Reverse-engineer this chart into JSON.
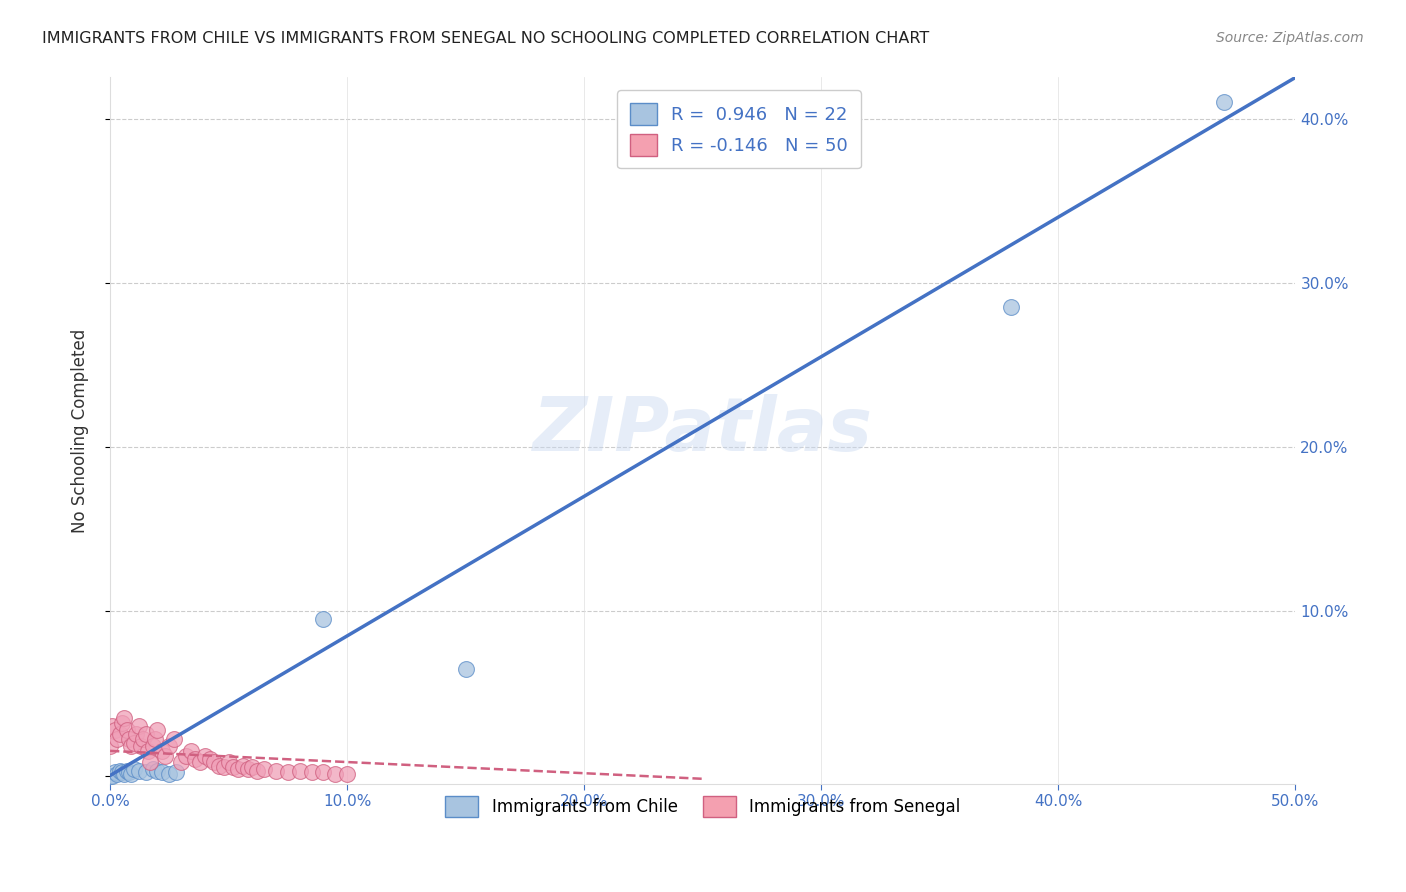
{
  "title": "IMMIGRANTS FROM CHILE VS IMMIGRANTS FROM SENEGAL NO SCHOOLING COMPLETED CORRELATION CHART",
  "source": "Source: ZipAtlas.com",
  "ylabel": "No Schooling Completed",
  "xlim": [
    0,
    0.5
  ],
  "ylim": [
    -0.005,
    0.425
  ],
  "xticks": [
    0.0,
    0.1,
    0.2,
    0.3,
    0.4,
    0.5
  ],
  "yticks": [
    0.0,
    0.1,
    0.2,
    0.3,
    0.4
  ],
  "xtick_labels": [
    "0.0%",
    "10.0%",
    "20.0%",
    "30.0%",
    "40.0%",
    "50.0%"
  ],
  "ytick_labels_right": [
    "",
    "10.0%",
    "20.0%",
    "30.0%",
    "40.0%"
  ],
  "background_color": "#ffffff",
  "grid_color": "#cccccc",
  "watermark": "ZIPatlas",
  "legend_color1": "#a8c4e0",
  "legend_color2": "#f4a0b0",
  "chile_color": "#a8c4e0",
  "chile_edge_color": "#5b8dc8",
  "chile_line_color": "#4472c4",
  "senegal_color": "#f0a0b8",
  "senegal_edge_color": "#d06080",
  "senegal_line_color": "#d06080",
  "chile_scatter_x": [
    0.0,
    0.001,
    0.002,
    0.003,
    0.004,
    0.005,
    0.006,
    0.007,
    0.008,
    0.009,
    0.01,
    0.012,
    0.015,
    0.018,
    0.02,
    0.022,
    0.025,
    0.028,
    0.09,
    0.15,
    0.38,
    0.47
  ],
  "chile_scatter_y": [
    0.0,
    0.0,
    0.002,
    0.001,
    0.003,
    0.002,
    0.001,
    0.003,
    0.002,
    0.001,
    0.004,
    0.003,
    0.002,
    0.004,
    0.003,
    0.002,
    0.001,
    0.002,
    0.095,
    0.065,
    0.285,
    0.41
  ],
  "senegal_scatter_x": [
    0.0,
    0.001,
    0.002,
    0.003,
    0.004,
    0.005,
    0.006,
    0.007,
    0.008,
    0.009,
    0.01,
    0.011,
    0.012,
    0.013,
    0.014,
    0.015,
    0.016,
    0.017,
    0.018,
    0.019,
    0.02,
    0.022,
    0.023,
    0.025,
    0.027,
    0.03,
    0.032,
    0.034,
    0.036,
    0.038,
    0.04,
    0.042,
    0.044,
    0.046,
    0.048,
    0.05,
    0.052,
    0.054,
    0.056,
    0.058,
    0.06,
    0.062,
    0.065,
    0.07,
    0.075,
    0.08,
    0.085,
    0.09,
    0.095,
    0.1
  ],
  "senegal_scatter_y": [
    0.018,
    0.03,
    0.028,
    0.022,
    0.025,
    0.032,
    0.035,
    0.028,
    0.022,
    0.018,
    0.02,
    0.025,
    0.03,
    0.018,
    0.022,
    0.025,
    0.015,
    0.008,
    0.018,
    0.022,
    0.028,
    0.015,
    0.012,
    0.018,
    0.022,
    0.008,
    0.012,
    0.015,
    0.01,
    0.008,
    0.012,
    0.01,
    0.008,
    0.006,
    0.005,
    0.008,
    0.005,
    0.004,
    0.006,
    0.004,
    0.005,
    0.003,
    0.004,
    0.003,
    0.002,
    0.003,
    0.002,
    0.002,
    0.001,
    0.001
  ],
  "chile_trend_x": [
    0.0,
    0.5
  ],
  "chile_trend_y": [
    0.0,
    0.425
  ],
  "senegal_trend_x": [
    0.0,
    0.25
  ],
  "senegal_trend_y": [
    0.015,
    -0.002
  ]
}
